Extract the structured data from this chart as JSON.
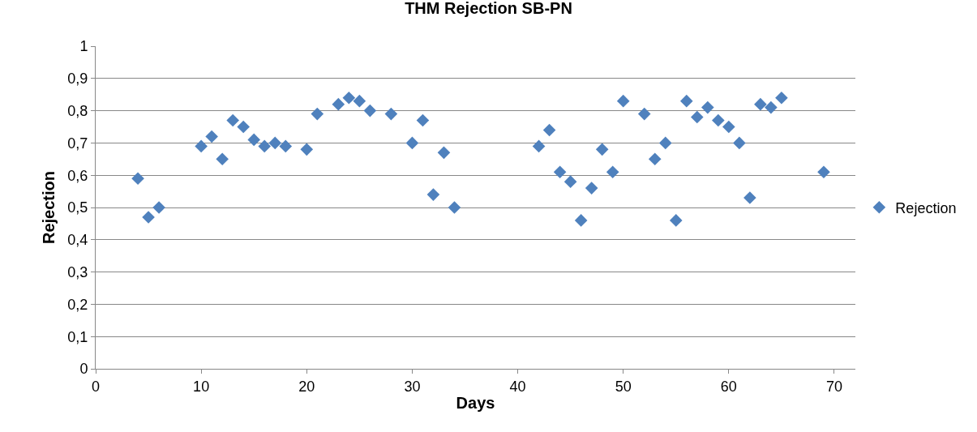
{
  "chart_data": {
    "type": "scatter",
    "title": "THM Rejection SB-PN",
    "xlabel": "Days",
    "ylabel": "Rejection",
    "x": [
      4,
      5,
      6,
      10,
      11,
      12,
      13,
      14,
      15,
      16,
      17,
      18,
      20,
      21,
      23,
      24,
      25,
      26,
      28,
      30,
      31,
      32,
      33,
      34,
      42,
      43,
      44,
      45,
      46,
      47,
      48,
      49,
      50,
      52,
      53,
      54,
      55,
      56,
      57,
      58,
      59,
      60,
      61,
      62,
      63,
      64,
      65,
      69
    ],
    "series": [
      {
        "name": "Rejection",
        "color": "#4f81bd",
        "values": [
          0.59,
          0.47,
          0.5,
          0.69,
          0.72,
          0.65,
          0.77,
          0.75,
          0.71,
          0.69,
          0.7,
          0.69,
          0.68,
          0.79,
          0.82,
          0.84,
          0.83,
          0.8,
          0.79,
          0.7,
          0.77,
          0.54,
          0.67,
          0.5,
          0.69,
          0.74,
          0.61,
          0.58,
          0.46,
          0.56,
          0.68,
          0.61,
          0.83,
          0.79,
          0.65,
          0.7,
          0.46,
          0.83,
          0.78,
          0.81,
          0.77,
          0.75,
          0.7,
          0.53,
          0.82,
          0.81,
          0.84,
          0.61
        ]
      }
    ],
    "xlim": [
      0,
      72
    ],
    "xticks": [
      0,
      10,
      20,
      30,
      40,
      50,
      60,
      70
    ],
    "ylim": [
      0,
      1
    ],
    "yticks": [
      0,
      {
        "value": 0.1,
        "label": "0,1"
      },
      {
        "value": 0.2,
        "label": "0,2"
      },
      {
        "value": 0.3,
        "label": "0,3"
      },
      {
        "value": 0.4,
        "label": "0,4"
      },
      {
        "value": 0.5,
        "label": "0,5"
      },
      {
        "value": 0.6,
        "label": "0,6"
      },
      {
        "value": 0.7,
        "label": "0,7"
      },
      {
        "value": 0.8,
        "label": "0,8"
      },
      {
        "value": 0.9,
        "label": "0,9"
      },
      1
    ],
    "grid": "y",
    "legend": "right",
    "marker": "diamond"
  }
}
